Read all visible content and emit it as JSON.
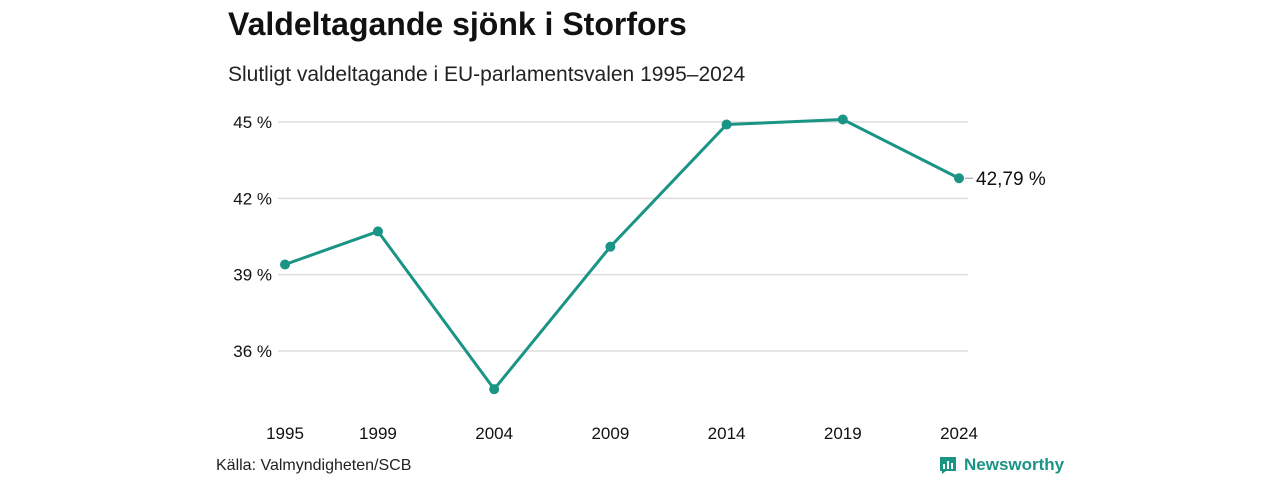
{
  "title": "Valdeltagande sjönk i Storfors",
  "subtitle": "Slutligt valdeltagande i EU-parlamentsvalen 1995–2024",
  "source": "Källa: Valmyndigheten/SCB",
  "brand": {
    "name": "Newsworthy",
    "icon": "bar-chart-logo-icon"
  },
  "colors": {
    "line": "#1a9485",
    "grid": "#dddddd",
    "text": "#111111"
  },
  "chart_data": {
    "type": "line",
    "x": [
      1995,
      1999,
      2004,
      2009,
      2014,
      2019,
      2024
    ],
    "x_tick_labels": [
      "1995",
      "1999",
      "2004",
      "2009",
      "2014",
      "2019",
      "2024"
    ],
    "series": [
      {
        "values": [
          39.4,
          40.7,
          34.5,
          40.1,
          44.9,
          45.1,
          42.79
        ]
      }
    ],
    "y_ticks": [
      36,
      39,
      42,
      45
    ],
    "y_tick_labels": [
      "36 %",
      "39 %",
      "42 %",
      "45 %"
    ],
    "ylim": [
      34,
      46
    ],
    "grid": true,
    "end_label": "42,79 %"
  }
}
